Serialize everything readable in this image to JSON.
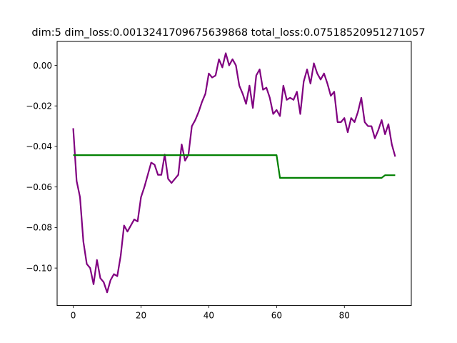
{
  "chart_data": {
    "type": "line",
    "title": "dim:5 dim_loss:0.0013241709675639868 total_loss:0.07518520951271057",
    "xlabel": "",
    "ylabel": "",
    "xlim": [
      -4.75,
      99.75
    ],
    "ylim": [
      -0.1185,
      0.0118
    ],
    "xticks": [
      0,
      20,
      40,
      60,
      80
    ],
    "yticks": [
      -0.1,
      -0.08,
      -0.06,
      -0.04,
      -0.02,
      0.0
    ],
    "xtick_labels": [
      "0",
      "20",
      "40",
      "60",
      "80"
    ],
    "ytick_labels": [
      "−0.10",
      "−0.08",
      "−0.06",
      "−0.04",
      "−0.02",
      "0.00"
    ],
    "grid": false,
    "legend": false,
    "series": [
      {
        "color": "#800080",
        "x": [
          0,
          1,
          2,
          3,
          4,
          5,
          6,
          7,
          8,
          9,
          10,
          11,
          12,
          13,
          14,
          15,
          16,
          17,
          18,
          19,
          20,
          21,
          22,
          23,
          24,
          25,
          26,
          27,
          28,
          29,
          30,
          31,
          32,
          33,
          34,
          35,
          36,
          37,
          38,
          39,
          40,
          41,
          42,
          43,
          44,
          45,
          46,
          47,
          48,
          49,
          50,
          51,
          52,
          53,
          54,
          55,
          56,
          57,
          58,
          59,
          60,
          61,
          62,
          63,
          64,
          65,
          66,
          67,
          68,
          69,
          70,
          71,
          72,
          73,
          74,
          75,
          76,
          77,
          78,
          79,
          80,
          81,
          82,
          83,
          84,
          85,
          86,
          87,
          88,
          89,
          90,
          91,
          92,
          93,
          94,
          95
        ],
        "y": [
          -0.031,
          -0.057,
          -0.065,
          -0.087,
          -0.098,
          -0.1,
          -0.108,
          -0.096,
          -0.105,
          -0.107,
          -0.112,
          -0.106,
          -0.103,
          -0.104,
          -0.094,
          -0.079,
          -0.082,
          -0.079,
          -0.076,
          -0.077,
          -0.065,
          -0.06,
          -0.054,
          -0.048,
          -0.049,
          -0.054,
          -0.054,
          -0.044,
          -0.056,
          -0.058,
          -0.056,
          -0.054,
          -0.039,
          -0.047,
          -0.044,
          -0.03,
          -0.027,
          -0.023,
          -0.018,
          -0.014,
          -0.004,
          -0.006,
          -0.005,
          0.003,
          -0.001,
          0.006,
          0.0,
          0.003,
          0.0,
          -0.01,
          -0.014,
          -0.019,
          -0.01,
          -0.021,
          -0.005,
          -0.002,
          -0.012,
          -0.011,
          -0.016,
          -0.024,
          -0.022,
          -0.025,
          -0.01,
          -0.017,
          -0.016,
          -0.017,
          -0.013,
          -0.024,
          -0.008,
          -0.002,
          -0.009,
          0.001,
          -0.004,
          -0.007,
          -0.004,
          -0.009,
          -0.015,
          -0.013,
          -0.028,
          -0.028,
          -0.026,
          -0.033,
          -0.026,
          -0.028,
          -0.023,
          -0.016,
          -0.028,
          -0.03,
          -0.03,
          -0.036,
          -0.032,
          -0.027,
          -0.034,
          -0.029,
          -0.039,
          -0.045
        ]
      },
      {
        "color": "#008000",
        "x": [
          0,
          60,
          61,
          91,
          92,
          95
        ],
        "y": [
          -0.0443,
          -0.0443,
          -0.0555,
          -0.0555,
          -0.0542,
          -0.0542
        ]
      }
    ]
  }
}
